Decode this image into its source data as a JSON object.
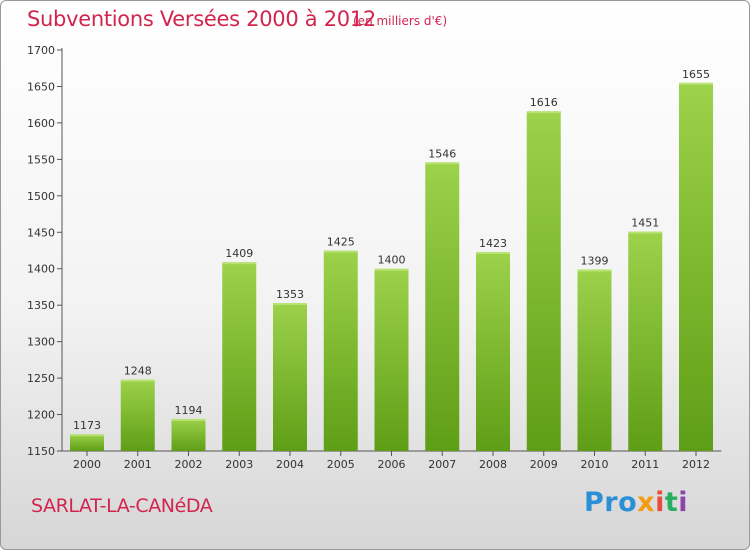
{
  "header": {
    "title": "Subventions Versées 2000 à 2012",
    "unit": "(en milliers d'€)"
  },
  "footer": {
    "town": "SARLAT-LA-CANéDA",
    "logo_parts": [
      "Pro",
      "x",
      "i",
      "t",
      "i"
    ]
  },
  "colors": {
    "bar_top": "#9dd24b",
    "bar_bottom": "#5e9e16",
    "title": "#d2254e"
  },
  "chart_data": {
    "type": "bar",
    "title": "Subventions Versées 2000 à 2012",
    "subtitle": "(en milliers d'€)",
    "xlabel": "",
    "ylabel": "",
    "categories": [
      "2000",
      "2001",
      "2002",
      "2003",
      "2004",
      "2005",
      "2006",
      "2007",
      "2008",
      "2009",
      "2010",
      "2011",
      "2012"
    ],
    "values": [
      1173,
      1248,
      1194,
      1409,
      1353,
      1425,
      1400,
      1546,
      1423,
      1616,
      1399,
      1451,
      1655
    ],
    "ylim": [
      1150,
      1700
    ],
    "yticks": [
      1150,
      1200,
      1250,
      1300,
      1350,
      1400,
      1450,
      1500,
      1550,
      1600,
      1650,
      1700
    ],
    "grid": false,
    "legend": "none"
  }
}
